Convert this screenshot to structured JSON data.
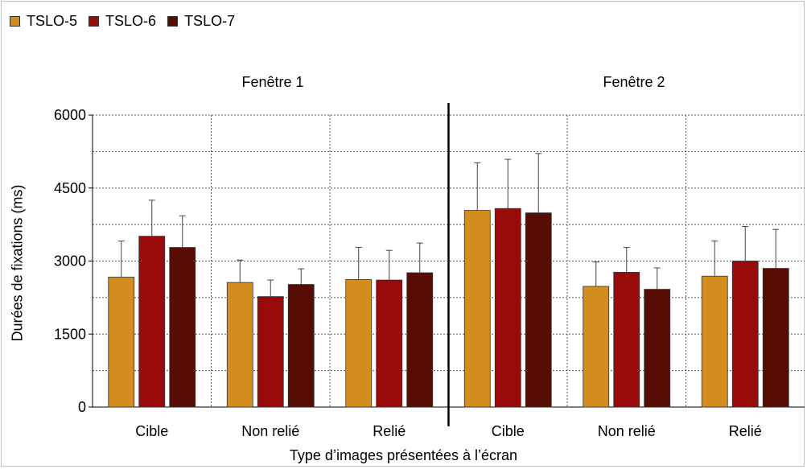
{
  "chart_data": {
    "type": "bar",
    "title": "",
    "xlabel": "Type d’images présentées à l’écran",
    "ylabel": "Durées de fixations (ms)",
    "ylim": [
      0,
      6000
    ],
    "yticks": [
      0,
      1500,
      3000,
      4500,
      6000
    ],
    "grid": true,
    "legend_position": "top-left",
    "panels": [
      {
        "title": "Fenêtre 1",
        "categories": [
          "Cible",
          "Non relié",
          "Relié"
        ],
        "series": [
          {
            "name": "TSLO-5",
            "values": [
              2670,
              2560,
              2620
            ],
            "errors": [
              740,
              460,
              660
            ]
          },
          {
            "name": "TSLO-6",
            "values": [
              3510,
              2270,
              2610
            ],
            "errors": [
              740,
              340,
              610
            ]
          },
          {
            "name": "TSLO-7",
            "values": [
              3280,
              2520,
              2760
            ],
            "errors": [
              650,
              320,
              610
            ]
          }
        ]
      },
      {
        "title": "Fenêtre 2",
        "categories": [
          "Cible",
          "Non relié",
          "Relié"
        ],
        "series": [
          {
            "name": "TSLO-5",
            "values": [
              4040,
              2480,
              2690
            ],
            "errors": [
              980,
              500,
              720
            ]
          },
          {
            "name": "TSLO-6",
            "values": [
              4080,
              2770,
              3000
            ],
            "errors": [
              1010,
              510,
              710
            ]
          },
          {
            "name": "TSLO-7",
            "values": [
              3990,
              2420,
              2850
            ],
            "errors": [
              1220,
              440,
              800
            ]
          }
        ]
      }
    ]
  },
  "colors": {
    "TSLO-5": "#D38D1F",
    "TSLO-6": "#990B0B",
    "TSLO-7": "#560E04"
  }
}
